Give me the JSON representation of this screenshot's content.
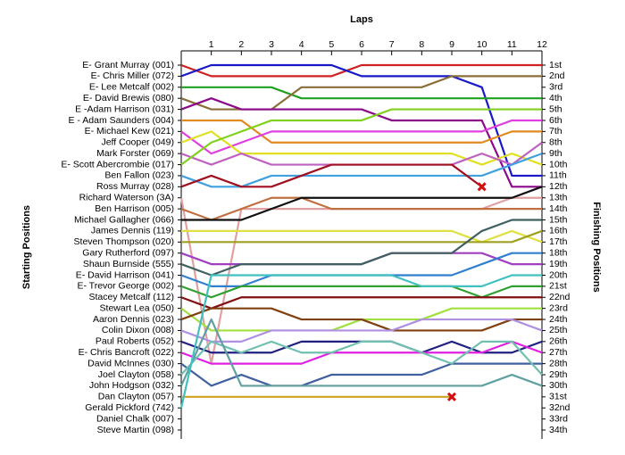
{
  "chart_data": {
    "type": "lap-chart",
    "title": "Laps",
    "y_label": "Starting Positions",
    "y2_label": "Finishing Positions",
    "x": [
      0,
      1,
      2,
      3,
      4,
      5,
      6,
      7,
      8,
      9,
      10,
      11,
      12
    ],
    "xlim": [
      0,
      12
    ],
    "xticks": [
      1,
      2,
      3,
      4,
      5,
      6,
      7,
      8,
      9,
      10,
      11,
      12
    ],
    "ylim": [
      1,
      34
    ],
    "yticks": [
      1,
      2,
      3,
      4,
      5,
      6,
      7,
      8,
      9,
      10,
      11,
      12,
      13,
      14,
      15,
      16,
      17,
      18,
      19,
      20,
      21,
      22,
      23,
      24,
      25,
      26,
      27,
      28,
      29,
      30,
      31,
      32,
      33,
      34
    ],
    "finishing_labels": [
      "1st",
      "2nd",
      "3rd",
      "4th",
      "5th",
      "6th",
      "7th",
      "8th",
      "9th",
      "10th",
      "11th",
      "12th",
      "13th",
      "14th",
      "15th",
      "16th",
      "17th",
      "18th",
      "19th",
      "20th",
      "21st",
      "22nd",
      "23rd",
      "24th",
      "25th",
      "26th",
      "27th",
      "28th",
      "29th",
      "30th",
      "31st",
      "32nd",
      "33rd",
      "34th"
    ],
    "series": [
      {
        "name": "E- Grant Murray (001)",
        "color": "#d02020",
        "values": [
          1,
          2,
          2,
          2,
          2,
          2,
          1,
          1,
          1,
          1,
          1,
          1,
          1
        ]
      },
      {
        "name": "E- Chris Miller (072)",
        "color": "#1818c8",
        "values": [
          2,
          1,
          1,
          1,
          1,
          1,
          2,
          2,
          2,
          2,
          3,
          11,
          11
        ]
      },
      {
        "name": "E- Lee Metcalf (002)",
        "color": "#20a020",
        "values": [
          3,
          3,
          3,
          3,
          4,
          4,
          4,
          4,
          4,
          4,
          4,
          4,
          4
        ]
      },
      {
        "name": "E- David Brewis (080)",
        "color": "#8b6f3a",
        "values": [
          4,
          5,
          5,
          5,
          3,
          3,
          3,
          3,
          3,
          2,
          2,
          2,
          2
        ]
      },
      {
        "name": "E -Adam Harrison (031)",
        "color": "#8a0a8a",
        "values": [
          5,
          4,
          5,
          5,
          5,
          5,
          5,
          6,
          6,
          6,
          6,
          12,
          12
        ]
      },
      {
        "name": "E - Adam Saunders (004)",
        "color": "#e08a20",
        "values": [
          6,
          6,
          6,
          8,
          8,
          8,
          8,
          8,
          8,
          8,
          8,
          7,
          7
        ]
      },
      {
        "name": "E- Michael Kew (021)",
        "color": "#e040e0",
        "values": [
          7,
          9,
          8,
          7,
          7,
          7,
          7,
          7,
          7,
          7,
          7,
          6,
          6
        ]
      },
      {
        "name": "Jeff Cooper (049)",
        "color": "#e0e020",
        "values": [
          8,
          7,
          9,
          9,
          9,
          9,
          9,
          9,
          9,
          9,
          10,
          9,
          10
        ]
      },
      {
        "name": "Mark Forster (069)",
        "color": "#c060c0",
        "values": [
          9,
          10,
          9,
          10,
          10,
          10,
          10,
          10,
          10,
          10,
          9,
          10,
          8
        ]
      },
      {
        "name": "E- Scott Abercrombie (017)",
        "color": "#80d020",
        "values": [
          10,
          8,
          7,
          6,
          6,
          6,
          6,
          5,
          5,
          5,
          5,
          5,
          5
        ]
      },
      {
        "name": "Ben Fallon (023)",
        "color": "#40a0e0",
        "values": [
          11,
          12,
          12,
          11,
          11,
          11,
          11,
          11,
          11,
          11,
          11,
          10,
          9
        ]
      },
      {
        "name": "Ross Murray (028)",
        "color": "#a01020",
        "retired": true,
        "values": [
          12,
          11,
          12,
          12,
          11,
          10,
          10,
          10,
          10,
          10,
          12,
          null,
          null
        ]
      },
      {
        "name": "Richard Waterson (3A)",
        "color": "#e0a0a0",
        "values": [
          13,
          28,
          14,
          14,
          14,
          14,
          14,
          14,
          14,
          14,
          14,
          13,
          13
        ]
      },
      {
        "name": "Ben Harrison (005)",
        "color": "#c07040",
        "values": [
          14,
          15,
          14,
          13,
          13,
          14,
          14,
          14,
          14,
          14,
          14,
          14,
          14
        ]
      },
      {
        "name": "Michael Gallagher (066)",
        "color": "#101010",
        "values": [
          15,
          15,
          15,
          14,
          13,
          13,
          13,
          13,
          13,
          13,
          13,
          13,
          12
        ]
      },
      {
        "name": "James Dennis (119)",
        "color": "#e0e040",
        "values": [
          16,
          16,
          16,
          16,
          16,
          16,
          16,
          16,
          16,
          16,
          17,
          16,
          17
        ]
      },
      {
        "name": "Steven Thompson (020)",
        "color": "#a0a020",
        "values": [
          17,
          17,
          17,
          17,
          17,
          17,
          17,
          17,
          17,
          17,
          17,
          17,
          16
        ]
      },
      {
        "name": "Gary Rutherford (097)",
        "color": "#a040c0",
        "values": [
          18,
          19,
          19,
          19,
          19,
          19,
          19,
          18,
          18,
          18,
          18,
          19,
          19
        ]
      },
      {
        "name": "Shaun Burnside (555)",
        "color": "#406060",
        "values": [
          19,
          20,
          19,
          19,
          19,
          19,
          19,
          18,
          18,
          18,
          16,
          15,
          15
        ]
      },
      {
        "name": "E- David Harrison (041)",
        "color": "#3080d0",
        "values": [
          20,
          21,
          21,
          20,
          20,
          20,
          20,
          20,
          20,
          20,
          19,
          18,
          18
        ]
      },
      {
        "name": "E- Trevor George (002)",
        "color": "#30a030",
        "values": [
          21,
          22,
          21,
          21,
          21,
          21,
          21,
          21,
          21,
          21,
          22,
          21,
          21
        ]
      },
      {
        "name": "Stacey Metcalf (112)",
        "color": "#801010",
        "values": [
          22,
          23,
          22,
          22,
          22,
          22,
          22,
          22,
          22,
          22,
          22,
          22,
          22
        ]
      },
      {
        "name": "Stewart Lea (050)",
        "color": "#a0e040",
        "values": [
          23,
          25,
          25,
          25,
          25,
          25,
          24,
          24,
          24,
          23,
          23,
          23,
          23
        ]
      },
      {
        "name": "Aaron Dennis (023)",
        "color": "#804010",
        "values": [
          24,
          23,
          23,
          23,
          24,
          24,
          24,
          25,
          25,
          25,
          25,
          24,
          24
        ]
      },
      {
        "name": "Colin Dixon (008)",
        "color": "#b090e0",
        "values": [
          25,
          26,
          26,
          25,
          25,
          25,
          25,
          25,
          24,
          24,
          24,
          24,
          25
        ]
      },
      {
        "name": "Paul Roberts (052)",
        "color": "#202080",
        "values": [
          26,
          27,
          27,
          27,
          26,
          26,
          26,
          26,
          27,
          26,
          27,
          27,
          26
        ]
      },
      {
        "name": "E- Chris Bancroft (022)",
        "color": "#e020e0",
        "values": [
          27,
          28,
          28,
          28,
          28,
          27,
          27,
          27,
          27,
          27,
          27,
          26,
          27
        ]
      },
      {
        "name": "David McInnes (030)",
        "color": "#4060a0",
        "values": [
          28,
          30,
          29,
          30,
          30,
          29,
          29,
          29,
          29,
          28,
          28,
          28,
          28
        ]
      },
      {
        "name": "Joel Clayton (058)",
        "color": "#70c0b0",
        "values": [
          29,
          26,
          27,
          26,
          27,
          27,
          26,
          26,
          27,
          28,
          26,
          26,
          29
        ]
      },
      {
        "name": "John Hodgson (032)",
        "color": "#60a0a0",
        "values": [
          30,
          24,
          30,
          30,
          30,
          30,
          30,
          30,
          30,
          30,
          30,
          29,
          30
        ]
      },
      {
        "name": "Dan Clayton (057)",
        "color": "#d0a020",
        "retired": true,
        "values": [
          31,
          31,
          31,
          31,
          31,
          31,
          31,
          31,
          31,
          31,
          null,
          null,
          null
        ]
      },
      {
        "name": "Gerald Pickford (742)",
        "color": "#40c0c0",
        "values": [
          32,
          20,
          20,
          20,
          20,
          20,
          20,
          20,
          21,
          21,
          21,
          20,
          20
        ]
      },
      {
        "name": "Daniel Chalk (007)",
        "color": "#808080",
        "values": [
          null,
          null,
          null,
          null,
          null,
          null,
          null,
          null,
          null,
          null,
          null,
          null,
          null
        ]
      },
      {
        "name": "Steve Martin (098)",
        "color": "#808080",
        "values": [
          null,
          null,
          null,
          null,
          null,
          null,
          null,
          null,
          null,
          null,
          null,
          null,
          null
        ]
      }
    ]
  }
}
